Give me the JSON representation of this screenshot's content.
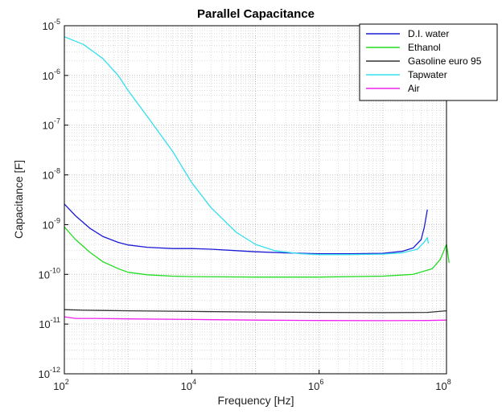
{
  "chart_data": {
    "type": "line",
    "title": "Parallel Capacitance",
    "xlabel": "Frequency [Hz]",
    "ylabel": "Capacitance [F]",
    "xscale": "log",
    "yscale": "log",
    "xlim": [
      100,
      100000000
    ],
    "ylim": [
      1e-12,
      1e-05
    ],
    "grid": "on (major and minor, dotted)",
    "legend_position": "top-right",
    "x_ticks": [
      {
        "value": 100,
        "base": "10",
        "exp": "2"
      },
      {
        "value": 10000,
        "base": "10",
        "exp": "4"
      },
      {
        "value": 1000000,
        "base": "10",
        "exp": "6"
      },
      {
        "value": 100000000,
        "base": "10",
        "exp": "8"
      }
    ],
    "y_ticks": [
      {
        "value": 1e-05,
        "base": "10",
        "exp": "-5"
      },
      {
        "value": 1e-06,
        "base": "10",
        "exp": "-6"
      },
      {
        "value": 1e-07,
        "base": "10",
        "exp": "-7"
      },
      {
        "value": 1e-08,
        "base": "10",
        "exp": "-8"
      },
      {
        "value": 1e-09,
        "base": "10",
        "exp": "-9"
      },
      {
        "value": 1e-10,
        "base": "10",
        "exp": "-10"
      },
      {
        "value": 1e-11,
        "base": "10",
        "exp": "-11"
      },
      {
        "value": 1e-12,
        "base": "10",
        "exp": "-12"
      }
    ],
    "series": [
      {
        "name": "D.I. water",
        "color": "#1a1ad6",
        "x": [
          100,
          150,
          250,
          400,
          700,
          1000,
          2000,
          5000,
          10000,
          20000,
          50000,
          100000,
          300000,
          1000000,
          3000000,
          10000000,
          20000000,
          30000000,
          40000000,
          45000000,
          50000000
        ],
        "y": [
          2.6e-09,
          1.5e-09,
          8.5e-10,
          5.8e-10,
          4.4e-10,
          3.9e-10,
          3.5e-10,
          3.3e-10,
          3.3e-10,
          3.2e-10,
          3e-10,
          2.85e-10,
          2.7e-10,
          2.6e-10,
          2.6e-10,
          2.65e-10,
          2.9e-10,
          3.4e-10,
          5e-10,
          9e-10,
          2e-09
        ]
      },
      {
        "name": "Ethanol",
        "color": "#22dd22",
        "x": [
          100,
          150,
          250,
          400,
          700,
          1000,
          2000,
          5000,
          10000,
          100000,
          1000000,
          10000000,
          30000000,
          60000000,
          80000000,
          100000000,
          110000000
        ],
        "y": [
          9e-10,
          5e-10,
          2.8e-10,
          1.8e-10,
          1.3e-10,
          1.1e-10,
          9.8e-11,
          9.2e-11,
          9e-11,
          8.8e-11,
          8.8e-11,
          9.2e-11,
          1e-10,
          1.3e-10,
          2e-10,
          4e-10,
          1.7e-10
        ]
      },
      {
        "name": "Gasoline euro 95",
        "color": "#333333",
        "x": [
          100,
          200,
          1000,
          10000,
          100000,
          1000000,
          10000000,
          50000000,
          100000000
        ],
        "y": [
          1.95e-11,
          1.9e-11,
          1.85e-11,
          1.8e-11,
          1.75e-11,
          1.72e-11,
          1.7e-11,
          1.72e-11,
          1.85e-11
        ]
      },
      {
        "name": "Tapwater",
        "color": "#33e0ee",
        "x": [
          100,
          200,
          400,
          700,
          1000,
          2000,
          5000,
          10000,
          20000,
          50000,
          100000,
          200000,
          500000,
          1000000,
          3000000,
          10000000,
          20000000,
          35000000,
          45000000,
          50000000,
          52000000
        ],
        "y": [
          6e-06,
          4.2e-06,
          2.2e-06,
          1e-06,
          5e-07,
          1.5e-07,
          3e-08,
          7e-09,
          2.2e-09,
          7e-10,
          4e-10,
          3e-10,
          2.6e-10,
          2.5e-10,
          2.5e-10,
          2.55e-10,
          2.7e-10,
          3.2e-10,
          4.5e-10,
          5.5e-10,
          4.2e-10
        ]
      },
      {
        "name": "Air",
        "color": "#ee22ee",
        "x": [
          100,
          150,
          300,
          1000,
          10000,
          100000,
          1000000,
          10000000,
          50000000,
          100000000
        ],
        "y": [
          1.4e-11,
          1.3e-11,
          1.3e-11,
          1.27e-11,
          1.24e-11,
          1.2e-11,
          1.18e-11,
          1.17e-11,
          1.18e-11,
          1.2e-11
        ]
      }
    ]
  }
}
